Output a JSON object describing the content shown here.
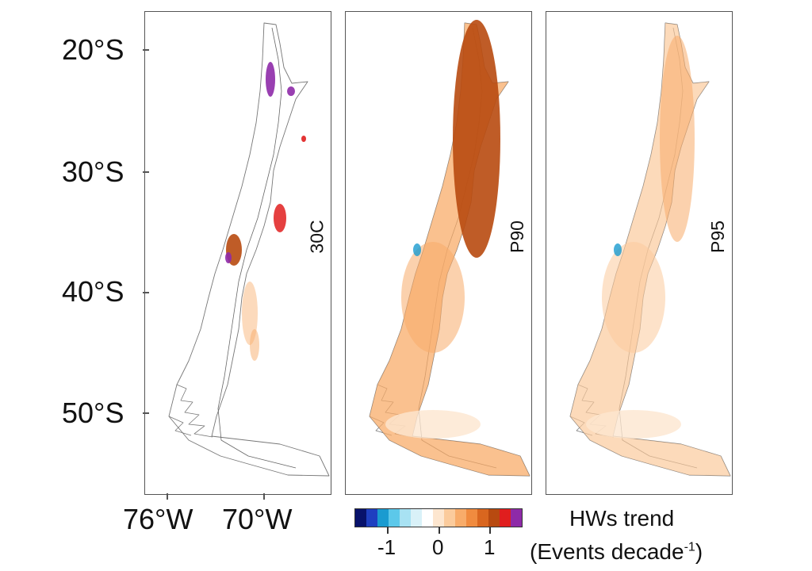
{
  "map": {
    "latitude_labels": [
      "20°S",
      "30°S",
      "40°S",
      "50°S"
    ],
    "longitude_labels": [
      "76°W",
      "70°W"
    ],
    "panels": [
      {
        "id": "30C",
        "label": "30C"
      },
      {
        "id": "P90",
        "label": "P90"
      },
      {
        "id": "P95",
        "label": "P95"
      }
    ]
  },
  "colorbar": {
    "tick_labels": [
      "-1",
      "0",
      "1"
    ],
    "colors": [
      "#08126b",
      "#1f3fc0",
      "#1a9bd0",
      "#5cc8ea",
      "#a8e2f3",
      "#d9f1f8",
      "#ffffff",
      "#fde6cf",
      "#fbcb9c",
      "#f8ac6a",
      "#f08b3f",
      "#d9661f",
      "#b84a10",
      "#e01e1e",
      "#8e2aa8"
    ],
    "title": "HWs trend",
    "units_prefix": "(Events decade",
    "units_exponent": "-1",
    "units_suffix": ")"
  }
}
